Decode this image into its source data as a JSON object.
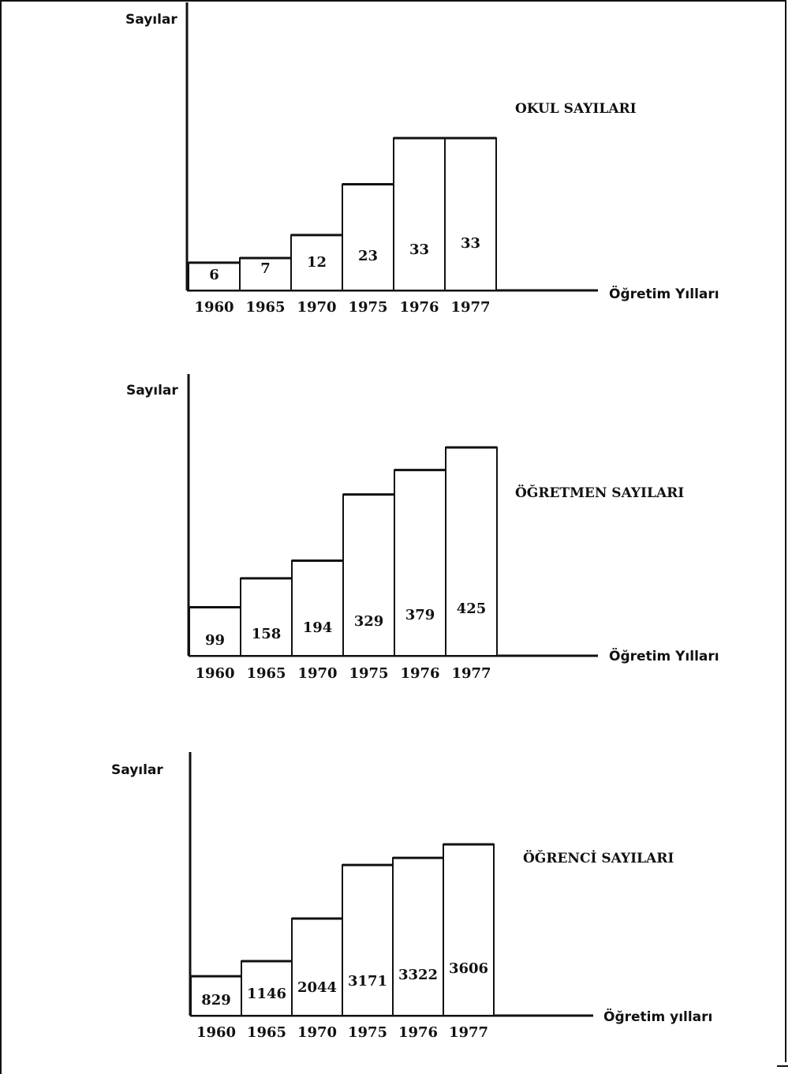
{
  "chart_data": [
    {
      "type": "bar",
      "title": "OKUL SAYILARI",
      "ylabel": "Sayılar",
      "xlabel": "Öğretim Yılları",
      "categories": [
        "1960",
        "1965",
        "1970",
        "1975",
        "1976",
        "1977"
      ],
      "values": [
        6,
        7,
        12,
        23,
        33,
        33
      ]
    },
    {
      "type": "bar",
      "title": "ÖĞRETMEN SAYILARI",
      "ylabel": "Sayılar",
      "xlabel": "Öğretim Yılları",
      "categories": [
        "1960",
        "1965",
        "1970",
        "1975",
        "1976",
        "1977"
      ],
      "values": [
        99,
        158,
        194,
        329,
        379,
        425
      ]
    },
    {
      "type": "bar",
      "title": "ÖĞRENCİ SAYILARI",
      "ylabel": "Sayılar",
      "xlabel": "Öğretim yılları",
      "categories": [
        "1960",
        "1965",
        "1970",
        "1975",
        "1976",
        "1977"
      ],
      "values": [
        829,
        1146,
        2044,
        3171,
        3322,
        3606
      ]
    }
  ]
}
